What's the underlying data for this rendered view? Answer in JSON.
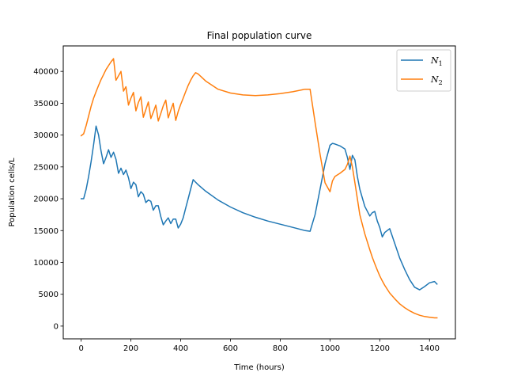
{
  "chart_data": {
    "type": "line",
    "title": "Final population curve",
    "xlabel": "Time (hours)",
    "ylabel": "Population cells/L",
    "xlim": [
      -72,
      1504
    ],
    "ylim": [
      -2000,
      44000
    ],
    "xticks": [
      0,
      200,
      400,
      600,
      800,
      1000,
      1200,
      1400
    ],
    "yticks": [
      0,
      5000,
      10000,
      15000,
      20000,
      25000,
      30000,
      35000,
      40000
    ],
    "grid": false,
    "legend_position": "top-right",
    "series": [
      {
        "name": "N",
        "subscript": "1",
        "color": "#1f77b4",
        "x": [
          0,
          10,
          20,
          30,
          40,
          50,
          60,
          70,
          80,
          90,
          100,
          110,
          120,
          130,
          140,
          150,
          160,
          170,
          180,
          190,
          200,
          210,
          220,
          230,
          240,
          250,
          260,
          270,
          280,
          290,
          300,
          310,
          320,
          330,
          340,
          350,
          360,
          370,
          380,
          390,
          400,
          410,
          420,
          430,
          440,
          450,
          460,
          470,
          500,
          550,
          600,
          650,
          700,
          750,
          800,
          850,
          900,
          920,
          940,
          960,
          980,
          1000,
          1010,
          1020,
          1040,
          1060,
          1070,
          1080,
          1090,
          1100,
          1110,
          1120,
          1140,
          1160,
          1170,
          1180,
          1190,
          1200,
          1210,
          1220,
          1240,
          1260,
          1280,
          1300,
          1320,
          1340,
          1360,
          1380,
          1400,
          1420,
          1430
        ],
        "y": [
          20000,
          20000,
          21500,
          23500,
          25800,
          28500,
          31400,
          30000,
          27500,
          25500,
          26500,
          27700,
          26500,
          27300,
          26200,
          24000,
          24800,
          23800,
          24500,
          23300,
          21600,
          22600,
          22200,
          20300,
          21100,
          20700,
          19400,
          19800,
          19600,
          18200,
          18900,
          18900,
          17200,
          15900,
          16500,
          17000,
          16100,
          16800,
          16800,
          15400,
          16000,
          17000,
          18500,
          20000,
          21500,
          23000,
          22600,
          22200,
          21200,
          19800,
          18700,
          17800,
          17100,
          16500,
          16000,
          15500,
          15000,
          14900,
          17500,
          21500,
          25500,
          28400,
          28700,
          28600,
          28300,
          27800,
          26500,
          24600,
          26800,
          26100,
          23500,
          21500,
          18800,
          17300,
          17800,
          18000,
          16500,
          15500,
          14000,
          14700,
          15300,
          13000,
          10700,
          8900,
          7300,
          6100,
          5700,
          6200,
          6800,
          7000,
          6600
        ]
      },
      {
        "name": "N",
        "subscript": "2",
        "color": "#ff7f0e",
        "x": [
          0,
          10,
          20,
          30,
          40,
          50,
          60,
          70,
          80,
          90,
          100,
          110,
          120,
          130,
          140,
          150,
          160,
          170,
          180,
          190,
          200,
          210,
          220,
          230,
          240,
          250,
          260,
          270,
          280,
          290,
          300,
          310,
          320,
          330,
          340,
          350,
          360,
          370,
          380,
          390,
          400,
          410,
          420,
          430,
          440,
          450,
          460,
          470,
          500,
          550,
          600,
          650,
          700,
          750,
          800,
          850,
          900,
          920,
          940,
          960,
          980,
          1000,
          1010,
          1020,
          1040,
          1060,
          1070,
          1080,
          1090,
          1100,
          1110,
          1120,
          1140,
          1160,
          1170,
          1180,
          1190,
          1200,
          1210,
          1220,
          1240,
          1260,
          1280,
          1300,
          1320,
          1340,
          1360,
          1380,
          1400,
          1420,
          1430
        ],
        "y": [
          29900,
          30200,
          31500,
          33000,
          34500,
          35800,
          36800,
          37800,
          38700,
          39500,
          40300,
          40900,
          41500,
          42000,
          38600,
          39300,
          40000,
          36900,
          37600,
          34700,
          35800,
          36700,
          33800,
          35100,
          36000,
          32800,
          34000,
          35200,
          32600,
          33600,
          34700,
          32200,
          33400,
          34600,
          35500,
          32700,
          33900,
          35000,
          32300,
          33700,
          34800,
          35800,
          36800,
          37800,
          38600,
          39300,
          39800,
          39600,
          38500,
          37200,
          36600,
          36300,
          36200,
          36300,
          36500,
          36800,
          37200,
          37200,
          32000,
          27000,
          22500,
          21100,
          22800,
          23500,
          24000,
          24600,
          25400,
          26700,
          25000,
          22500,
          20000,
          17500,
          14500,
          12000,
          10800,
          9800,
          8800,
          7900,
          7100,
          6400,
          5200,
          4300,
          3500,
          2900,
          2400,
          2000,
          1700,
          1500,
          1400,
          1300,
          1300
        ]
      }
    ]
  }
}
